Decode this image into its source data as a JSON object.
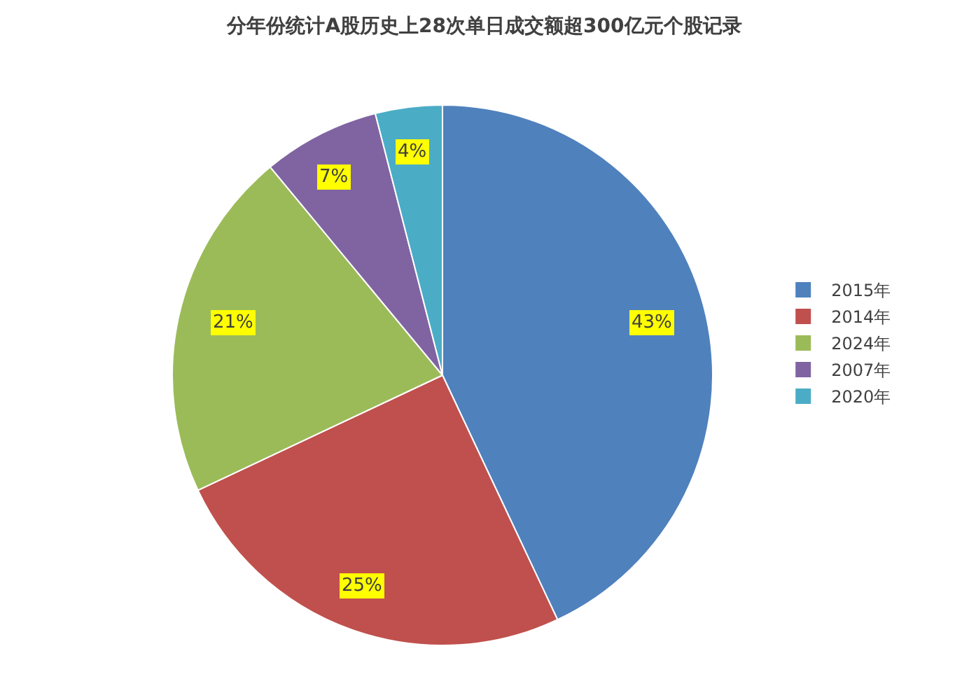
{
  "chart_data": {
    "type": "pie",
    "title": "分年份统计A股历史上28次单日成交额超300亿元个股记录",
    "categories": [
      "2015年",
      "2014年",
      "2024年",
      "2007年",
      "2020年"
    ],
    "values": [
      43,
      25,
      21,
      7,
      4
    ],
    "colors": [
      "#4f81bd",
      "#c0504d",
      "#9bbb59",
      "#8064a2",
      "#4bacc6"
    ],
    "value_labels": [
      "43%",
      "25%",
      "21%",
      "7%",
      "4%"
    ],
    "legend": "right"
  }
}
